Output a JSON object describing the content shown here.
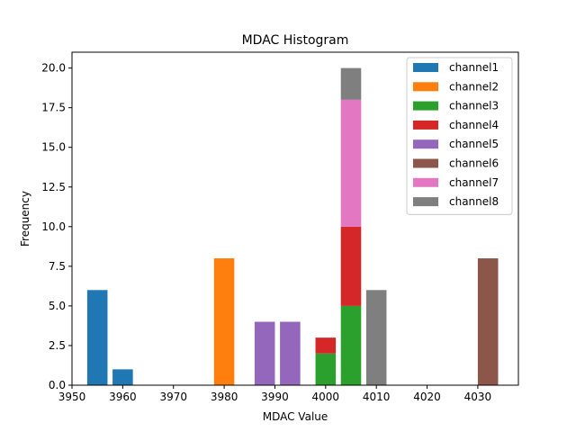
{
  "chart_data": {
    "type": "bar",
    "title": "MDAC Histogram",
    "xlabel": "MDAC Value",
    "ylabel": "Frequency",
    "xlim": [
      3950,
      4038
    ],
    "ylim": [
      0,
      21
    ],
    "x_ticks": [
      "3950",
      "3960",
      "3970",
      "3980",
      "3990",
      "4000",
      "4010",
      "4020",
      "4030"
    ],
    "y_ticks": [
      "0.0",
      "2.5",
      "5.0",
      "7.5",
      "10.0",
      "12.5",
      "15.0",
      "17.5",
      "20.0"
    ],
    "bar_width": 4,
    "stacked": true,
    "legend_location": "top-right",
    "series": [
      {
        "name": "channel1",
        "color": "#1f77b4",
        "bars": [
          {
            "x": 3955,
            "value": 6
          },
          {
            "x": 3960,
            "value": 1
          }
        ]
      },
      {
        "name": "channel2",
        "color": "#ff7f0e",
        "bars": [
          {
            "x": 3980,
            "value": 8
          }
        ]
      },
      {
        "name": "channel3",
        "color": "#2ca02c",
        "bars": [
          {
            "x": 4000,
            "value": 2
          },
          {
            "x": 4005,
            "value": 5
          }
        ]
      },
      {
        "name": "channel4",
        "color": "#d62728",
        "bars": [
          {
            "x": 4000,
            "value": 1
          },
          {
            "x": 4005,
            "value": 5
          }
        ]
      },
      {
        "name": "channel5",
        "color": "#9467bd",
        "bars": [
          {
            "x": 3988,
            "value": 4
          },
          {
            "x": 3993,
            "value": 4
          }
        ]
      },
      {
        "name": "channel6",
        "color": "#8c564b",
        "bars": [
          {
            "x": 4032,
            "value": 8
          }
        ]
      },
      {
        "name": "channel7",
        "color": "#e377c2",
        "bars": [
          {
            "x": 4005,
            "value": 8
          }
        ]
      },
      {
        "name": "channel8",
        "color": "#7f7f7f",
        "bars": [
          {
            "x": 4005,
            "value": 2
          },
          {
            "x": 4010,
            "value": 6
          }
        ]
      }
    ]
  }
}
